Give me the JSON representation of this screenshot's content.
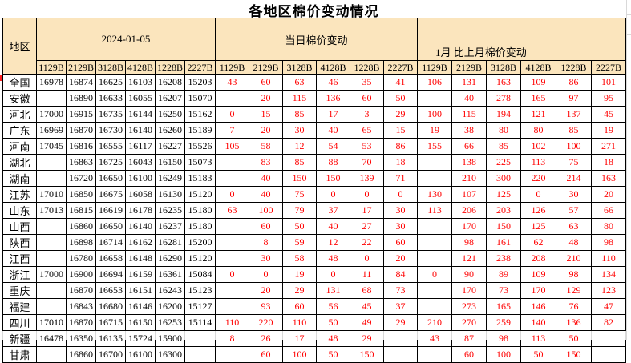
{
  "title": "各地区棉价变动情况",
  "colors": {
    "header_bg": "#FBE5BD",
    "change_text": "#FF0000",
    "price_text": "#000000",
    "border": "#000000"
  },
  "table": {
    "region_header": "地区",
    "groups": [
      {
        "label": "2024-01-05"
      },
      {
        "label": "当日棉价变动"
      },
      {
        "label": "1月 比上月棉价变动"
      }
    ],
    "grade_columns": [
      "1129B",
      "2129B",
      "3128B",
      "4128B",
      "1228B",
      "2227B"
    ],
    "rows": [
      {
        "region": "全国",
        "prices": [
          "16978",
          "16874",
          "16625",
          "16103",
          "16208",
          "15203"
        ],
        "daily_change": [
          "43",
          "60",
          "63",
          "46",
          "35",
          "41"
        ],
        "monthly_change": [
          "106",
          "131",
          "163",
          "109",
          "86",
          "101"
        ]
      },
      {
        "region": "安徽",
        "prices": [
          "",
          "16890",
          "16633",
          "16055",
          "16207",
          "15070"
        ],
        "daily_change": [
          "",
          "20",
          "115",
          "136",
          "60",
          "50"
        ],
        "monthly_change": [
          "",
          "40",
          "278",
          "165",
          "97",
          "95"
        ]
      },
      {
        "region": "河北",
        "prices": [
          "17000",
          "16915",
          "16735",
          "16144",
          "16250",
          "15162"
        ],
        "daily_change": [
          "0",
          "15",
          "85",
          "17",
          "3",
          "29"
        ],
        "monthly_change": [
          "100",
          "115",
          "194",
          "121",
          "137",
          "45"
        ]
      },
      {
        "region": "广东",
        "prices": [
          "16969",
          "16870",
          "16730",
          "16140",
          "16260",
          "15189"
        ],
        "daily_change": [
          "7",
          "20",
          "30",
          "40",
          "65",
          "15"
        ],
        "monthly_change": [
          "19",
          "38",
          "80",
          "80",
          "85",
          "19"
        ]
      },
      {
        "region": "河南",
        "prices": [
          "17045",
          "16816",
          "16555",
          "16117",
          "16227",
          "15526"
        ],
        "daily_change": [
          "105",
          "58",
          "12",
          "54",
          "53",
          "86"
        ],
        "monthly_change": [
          "155",
          "66",
          "85",
          "102",
          "100",
          "271"
        ]
      },
      {
        "region": "湖北",
        "prices": [
          "",
          "16863",
          "16725",
          "16043",
          "16150",
          "15073"
        ],
        "daily_change": [
          "",
          "83",
          "85",
          "88",
          "70",
          "18"
        ],
        "monthly_change": [
          "",
          "138",
          "225",
          "113",
          "75",
          "18"
        ]
      },
      {
        "region": "湖南",
        "prices": [
          "",
          "16720",
          "16650",
          "16100",
          "16249",
          "15183"
        ],
        "daily_change": [
          "",
          "40",
          "150",
          "150",
          "139",
          "71"
        ],
        "monthly_change": [
          "",
          "210",
          "300",
          "220",
          "214",
          "163"
        ]
      },
      {
        "region": "江苏",
        "prices": [
          "17010",
          "16850",
          "16675",
          "16058",
          "16130",
          "15120"
        ],
        "daily_change": [
          "0",
          "40",
          "75",
          "0",
          "0",
          "0"
        ],
        "monthly_change": [
          "130",
          "107",
          "125",
          "0",
          "30",
          "20"
        ]
      },
      {
        "region": "山东",
        "prices": [
          "17013",
          "16815",
          "16619",
          "16178",
          "16235",
          "15180"
        ],
        "daily_change": [
          "63",
          "100",
          "79",
          "37",
          "17",
          "30"
        ],
        "monthly_change": [
          "113",
          "206",
          "203",
          "126",
          "57",
          "66"
        ]
      },
      {
        "region": "山西",
        "prices": [
          "",
          "16860",
          "16650",
          "16140",
          "16237",
          "15180"
        ],
        "daily_change": [
          "",
          "60",
          "50",
          "40",
          "27",
          "30"
        ],
        "monthly_change": [
          "",
          "170",
          "150",
          "125",
          "63",
          "80"
        ]
      },
      {
        "region": "陕西",
        "prices": [
          "",
          "16898",
          "16714",
          "16162",
          "16281",
          "15200"
        ],
        "daily_change": [
          "",
          "8",
          "59",
          "12",
          "22",
          "60"
        ],
        "monthly_change": [
          "",
          "98",
          "161",
          "62",
          "48",
          "98"
        ]
      },
      {
        "region": "江西",
        "prices": [
          "",
          "16780",
          "16658",
          "16148",
          "16290",
          "15120"
        ],
        "daily_change": [
          "",
          "30",
          "58",
          "48",
          "0",
          "20"
        ],
        "monthly_change": [
          "",
          "121",
          "238",
          "208",
          "210",
          "110"
        ]
      },
      {
        "region": "浙江",
        "prices": [
          "17000",
          "16900",
          "16694",
          "16159",
          "16361",
          "15084"
        ],
        "daily_change": [
          "0",
          "0",
          "19",
          "0",
          "11",
          "84"
        ],
        "monthly_change": [
          "0",
          "90",
          "89",
          "109",
          "98",
          "134"
        ]
      },
      {
        "region": "重庆",
        "prices": [
          "",
          "16870",
          "16653",
          "16151",
          "16243",
          "15123"
        ],
        "daily_change": [
          "",
          "20",
          "29",
          "131",
          "68",
          "73"
        ],
        "monthly_change": [
          "",
          "170",
          "73",
          "170",
          "129",
          "123"
        ]
      },
      {
        "region": "福建",
        "prices": [
          "",
          "16843",
          "16680",
          "16146",
          "16200",
          "15127"
        ],
        "daily_change": [
          "",
          "93",
          "60",
          "56",
          "45",
          "37"
        ],
        "monthly_change": [
          "",
          "273",
          "165",
          "146",
          "76",
          "47"
        ]
      },
      {
        "region": "四川",
        "prices": [
          "17010",
          "16870",
          "16715",
          "16150",
          "16253",
          "15114"
        ],
        "daily_change": [
          "110",
          "220",
          "110",
          "50",
          "49",
          "29"
        ],
        "monthly_change": [
          "210",
          "270",
          "259",
          "140",
          "136",
          "82"
        ]
      },
      {
        "region": "新疆",
        "prices": [
          "16478",
          "16350",
          "16135",
          "15724",
          "15900",
          ""
        ],
        "daily_change": [
          "8",
          "26",
          "17",
          "48",
          "29",
          ""
        ],
        "monthly_change": [
          "43",
          "87",
          "98",
          "113",
          "50",
          ""
        ]
      },
      {
        "region": "甘肃",
        "prices": [
          "",
          "16860",
          "16700",
          "16100",
          "16300",
          ""
        ],
        "daily_change": [
          "",
          "60",
          "100",
          "50",
          "150",
          ""
        ],
        "monthly_change": [
          "",
          "60",
          "100",
          "50",
          "150",
          ""
        ]
      }
    ]
  }
}
